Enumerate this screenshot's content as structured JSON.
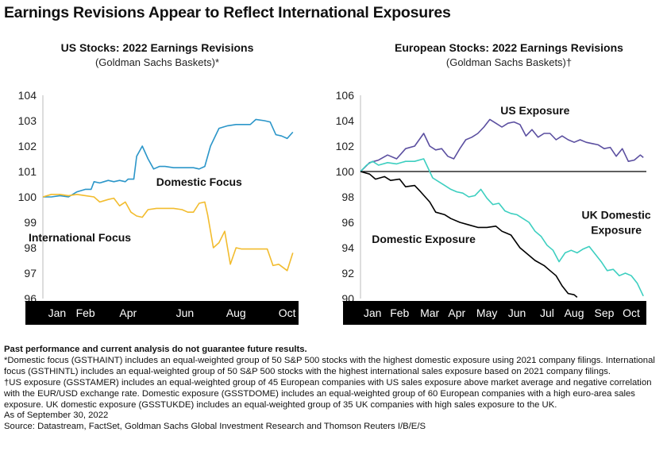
{
  "title": "Earnings Revisions Appear to Reflect International Exposures",
  "colors": {
    "blue": "#2b96c9",
    "yellow": "#f2bc2e",
    "purple": "#5b4fa0",
    "teal": "#3dcfc0",
    "black": "#000000",
    "axis_bar": "#000000"
  },
  "chart_data": [
    {
      "type": "line",
      "title": "US Stocks: 2022 Earnings Revisions",
      "subtitle": "(Goldman Sachs Baskets)*",
      "xlabel": "",
      "ylabel": "",
      "ylim": [
        96,
        104
      ],
      "y_ticks": [
        "104",
        "103",
        "102",
        "101",
        "100",
        "99",
        "98",
        "97",
        "96"
      ],
      "x_ticks": [
        "Jan",
        "Feb",
        "Apr",
        "Jun",
        "Aug",
        "Oct"
      ],
      "x_tick_pos": [
        0.5,
        1.5,
        3.0,
        5.0,
        6.8,
        8.6
      ],
      "xlim": [
        0,
        9
      ],
      "grid": false,
      "series": [
        {
          "name": "Domestic Focus",
          "color": "blue",
          "x": [
            0.0,
            0.3,
            0.6,
            0.9,
            1.2,
            1.5,
            1.7,
            1.8,
            2.0,
            2.3,
            2.5,
            2.7,
            2.9,
            3.0,
            3.2,
            3.3,
            3.5,
            3.7,
            3.9,
            4.1,
            4.3,
            4.6,
            4.9,
            5.1,
            5.3,
            5.5,
            5.7,
            5.9,
            6.2,
            6.5,
            6.8,
            7.1,
            7.3,
            7.5,
            7.8,
            8.0,
            8.2,
            8.4,
            8.6,
            8.8
          ],
          "y": [
            100.0,
            100.0,
            100.05,
            100.0,
            100.2,
            100.3,
            100.3,
            100.6,
            100.55,
            100.65,
            100.6,
            100.65,
            100.6,
            100.7,
            100.7,
            101.6,
            102.0,
            101.5,
            101.1,
            101.2,
            101.2,
            101.15,
            101.15,
            101.15,
            101.15,
            101.1,
            101.2,
            102.0,
            102.7,
            102.8,
            102.85,
            102.85,
            102.85,
            103.05,
            103.0,
            102.95,
            102.45,
            102.4,
            102.3,
            102.55
          ]
        },
        {
          "name": "International Focus",
          "color": "yellow",
          "x": [
            0.0,
            0.3,
            0.6,
            0.9,
            1.2,
            1.5,
            1.8,
            2.0,
            2.3,
            2.5,
            2.7,
            2.9,
            3.1,
            3.3,
            3.5,
            3.7,
            4.0,
            4.3,
            4.6,
            4.9,
            5.1,
            5.3,
            5.5,
            5.7,
            5.8,
            6.0,
            6.2,
            6.4,
            6.6,
            6.8,
            7.0,
            7.3,
            7.6,
            7.9,
            8.1,
            8.3,
            8.6,
            8.8
          ],
          "y": [
            100.0,
            100.1,
            100.1,
            100.05,
            100.1,
            100.05,
            100.0,
            99.8,
            99.9,
            99.95,
            99.65,
            99.8,
            99.4,
            99.25,
            99.2,
            99.5,
            99.55,
            99.55,
            99.55,
            99.5,
            99.4,
            99.4,
            99.75,
            99.8,
            99.3,
            98.0,
            98.2,
            98.65,
            97.35,
            98.0,
            97.95,
            97.95,
            97.95,
            97.95,
            97.3,
            97.35,
            97.1,
            97.8
          ]
        }
      ],
      "annotations": [
        {
          "text": "Domestic Focus",
          "x": 5.5,
          "y": 100.6
        },
        {
          "text": "International Focus",
          "x": 1.3,
          "y": 98.4
        }
      ]
    },
    {
      "type": "line",
      "title": "European Stocks: 2022 Earnings Revisions",
      "subtitle": "(Goldman Sachs Baskets)†",
      "xlabel": "",
      "ylabel": "",
      "ylim": [
        90,
        106
      ],
      "y_ticks": [
        "106",
        "104",
        "102",
        "100",
        "98",
        "96",
        "94",
        "92",
        "90"
      ],
      "x_ticks": [
        "Jan",
        "Feb",
        "Mar",
        "Apr",
        "May",
        "Jun",
        "Jul",
        "Aug",
        "Sep",
        "Oct"
      ],
      "x_tick_pos": [
        0.4,
        1.3,
        2.3,
        3.2,
        4.2,
        5.2,
        6.2,
        7.1,
        8.1,
        9.0
      ],
      "xlim": [
        0,
        9.5
      ],
      "reference_line": 100,
      "grid": false,
      "series": [
        {
          "name": "US Exposure",
          "color": "purple",
          "x": [
            0.0,
            0.3,
            0.6,
            0.9,
            1.2,
            1.5,
            1.8,
            2.1,
            2.3,
            2.5,
            2.7,
            2.9,
            3.1,
            3.3,
            3.5,
            3.7,
            3.9,
            4.1,
            4.3,
            4.5,
            4.7,
            4.9,
            5.1,
            5.3,
            5.5,
            5.7,
            5.9,
            6.1,
            6.3,
            6.5,
            6.7,
            6.9,
            7.1,
            7.3,
            7.5,
            7.7,
            7.9,
            8.1,
            8.3,
            8.5,
            8.7,
            8.9,
            9.1,
            9.3,
            9.4
          ],
          "y": [
            100.0,
            100.7,
            100.9,
            101.3,
            101.0,
            101.8,
            102.0,
            103.0,
            102.0,
            101.7,
            101.8,
            101.2,
            101.0,
            101.8,
            102.5,
            102.7,
            103.0,
            103.5,
            104.1,
            103.8,
            103.5,
            103.8,
            103.9,
            103.7,
            102.8,
            103.3,
            102.7,
            103.0,
            103.0,
            102.5,
            102.8,
            102.5,
            102.3,
            102.5,
            102.3,
            102.2,
            102.1,
            101.8,
            101.9,
            101.2,
            101.8,
            100.8,
            100.9,
            101.3,
            101.1
          ]
        },
        {
          "name": "UK Domestic Exposure",
          "color": "teal",
          "x": [
            0.0,
            0.2,
            0.4,
            0.6,
            0.9,
            1.2,
            1.5,
            1.8,
            2.1,
            2.2,
            2.4,
            2.6,
            2.8,
            3.0,
            3.2,
            3.4,
            3.6,
            3.8,
            4.0,
            4.2,
            4.4,
            4.6,
            4.8,
            5.0,
            5.2,
            5.4,
            5.6,
            5.8,
            6.0,
            6.2,
            6.4,
            6.6,
            6.8,
            7.0,
            7.2,
            7.4,
            7.6,
            7.8,
            8.0,
            8.2,
            8.4,
            8.6,
            8.8,
            9.0,
            9.2,
            9.4
          ],
          "y": [
            100.0,
            100.5,
            100.8,
            100.5,
            100.7,
            100.6,
            100.8,
            100.8,
            101.0,
            100.5,
            99.5,
            99.2,
            98.9,
            98.6,
            98.4,
            98.3,
            98.0,
            98.1,
            98.6,
            97.9,
            97.4,
            97.5,
            96.9,
            96.7,
            96.6,
            96.3,
            96.0,
            95.3,
            94.9,
            94.2,
            93.8,
            92.9,
            93.6,
            93.8,
            93.6,
            93.9,
            94.1,
            93.5,
            92.9,
            92.2,
            92.3,
            91.8,
            92.0,
            91.8,
            91.2,
            90.2
          ]
        },
        {
          "name": "Domestic Exposure",
          "color": "black",
          "x": [
            0.0,
            0.3,
            0.5,
            0.8,
            1.0,
            1.3,
            1.5,
            1.8,
            2.0,
            2.3,
            2.5,
            2.8,
            3.0,
            3.3,
            3.6,
            3.9,
            4.2,
            4.5,
            4.7,
            5.0,
            5.3,
            5.5,
            5.8,
            6.1,
            6.3,
            6.5,
            6.7,
            6.9,
            7.1,
            7.2
          ],
          "y": [
            100.0,
            99.8,
            99.4,
            99.6,
            99.3,
            99.4,
            98.8,
            98.9,
            98.4,
            97.6,
            96.8,
            96.6,
            96.3,
            96.0,
            95.8,
            95.6,
            95.6,
            95.7,
            95.3,
            95.0,
            94.0,
            93.6,
            93.0,
            92.6,
            92.2,
            91.8,
            91.0,
            90.4,
            90.3,
            90.1
          ]
        }
      ],
      "annotations": [
        {
          "text": "US Exposure",
          "x": 5.8,
          "y": 104.8
        },
        {
          "text": "UK Domestic",
          "x": 8.5,
          "y": 96.6
        },
        {
          "text": "Exposure",
          "x": 8.5,
          "y": 95.4
        },
        {
          "text": "Domestic Exposure",
          "x": 2.1,
          "y": 94.7
        }
      ]
    }
  ],
  "notes": {
    "disclaimer": "Past performance and current analysis do not guarantee future results.",
    "footnote_star": "*Domestic focus (GSTHAINT) includes an equal-weighted group of 50 S&P 500 stocks with the highest domestic exposure using 2021 company filings. International focus (GSTHINTL) includes an equal-weighted group of 50 S&P 500 stocks with the highest international sales exposure based on 2021 company filings.",
    "footnote_dagger": "†US exposure (GSSTAMER) includes an equal-weighted group of 45 European companies with US sales exposure above market average and negative correlation with the EUR/USD exchange rate. Domestic exposure (GSSTDOME) includes an equal-weighted group of 60 European companies with a high euro-area sales exposure. UK domestic exposure (GSSTUKDE) includes an equal-weighted group of 35 UK companies with high sales exposure to the UK.",
    "as_of": "As of September 30, 2022",
    "source": "Source: Datastream, FactSet, Goldman Sachs Global Investment Research and Thomson Reuters I/B/E/S"
  }
}
